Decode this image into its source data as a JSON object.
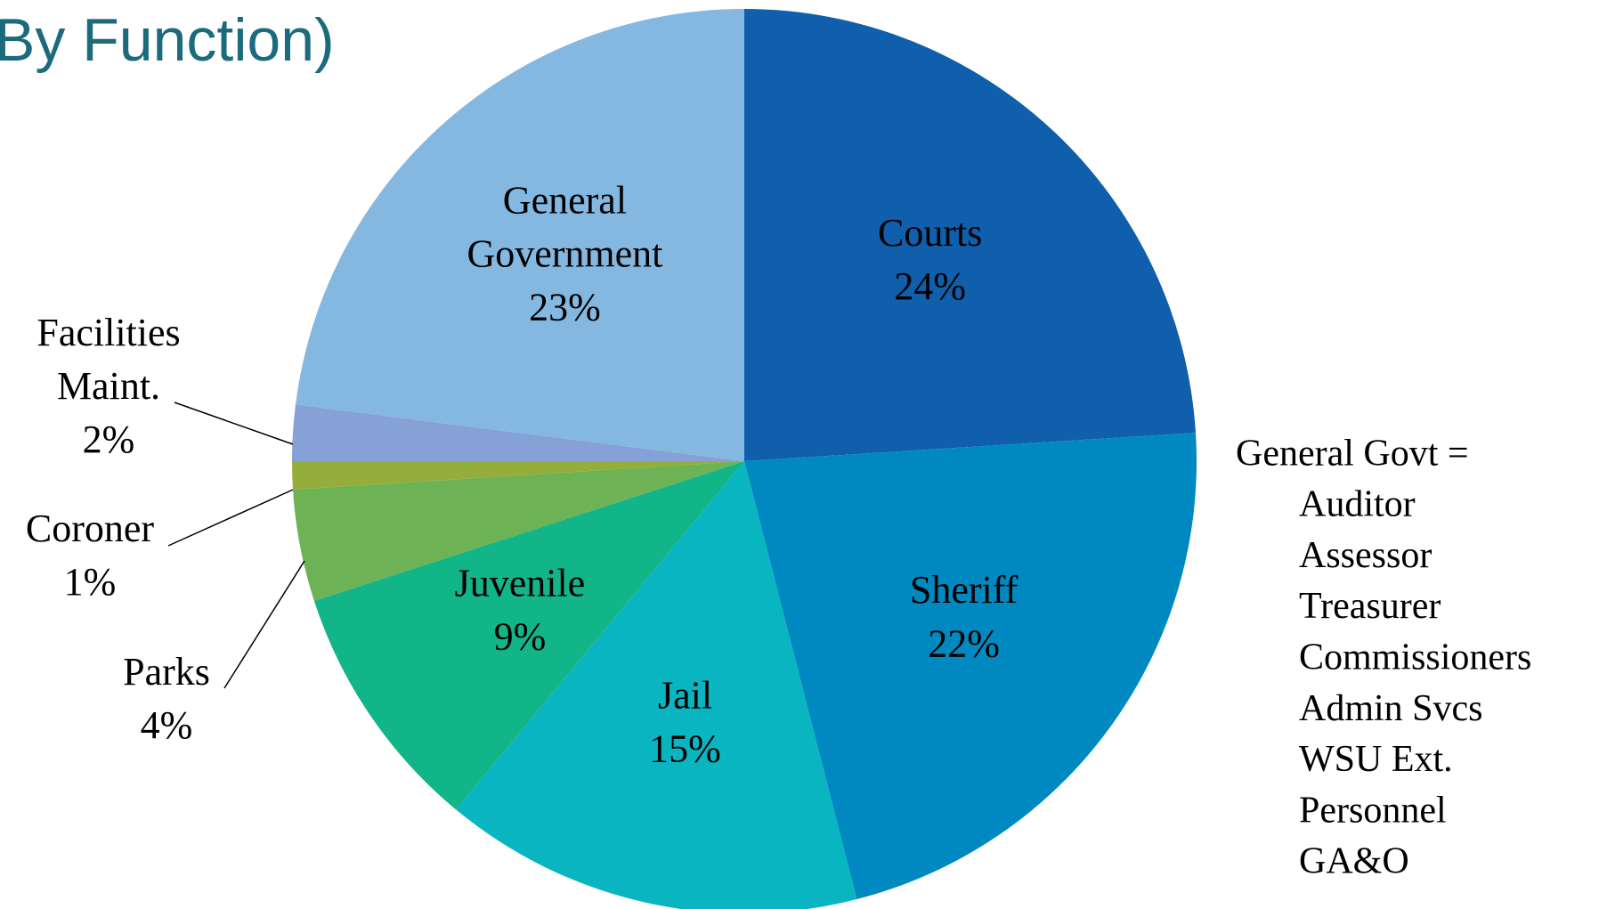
{
  "chart_data": {
    "type": "pie",
    "title": "By Function)",
    "categories": [
      "Courts",
      "Sheriff",
      "Jail",
      "Juvenile",
      "Parks",
      "Coroner",
      "Facilities Maint.",
      "General Government"
    ],
    "values": [
      24,
      22,
      15,
      9,
      4,
      1,
      2,
      23
    ],
    "value_labels": [
      "24%",
      "22%",
      "15%",
      "9%",
      "4%",
      "1%",
      "2%",
      "23%"
    ],
    "colors": [
      "#0f5fad",
      "#0089c0",
      "#09b5c1",
      "#12b588",
      "#6db255",
      "#95ad3b",
      "#86a1d6",
      "#85b8e0"
    ],
    "note": {
      "heading": "General Govt =",
      "items": [
        "Auditor",
        "Assessor",
        "Treasurer",
        "Commissioners",
        "Admin Svcs",
        "WSU Ext.",
        "Personnel",
        "GA&O"
      ]
    }
  }
}
